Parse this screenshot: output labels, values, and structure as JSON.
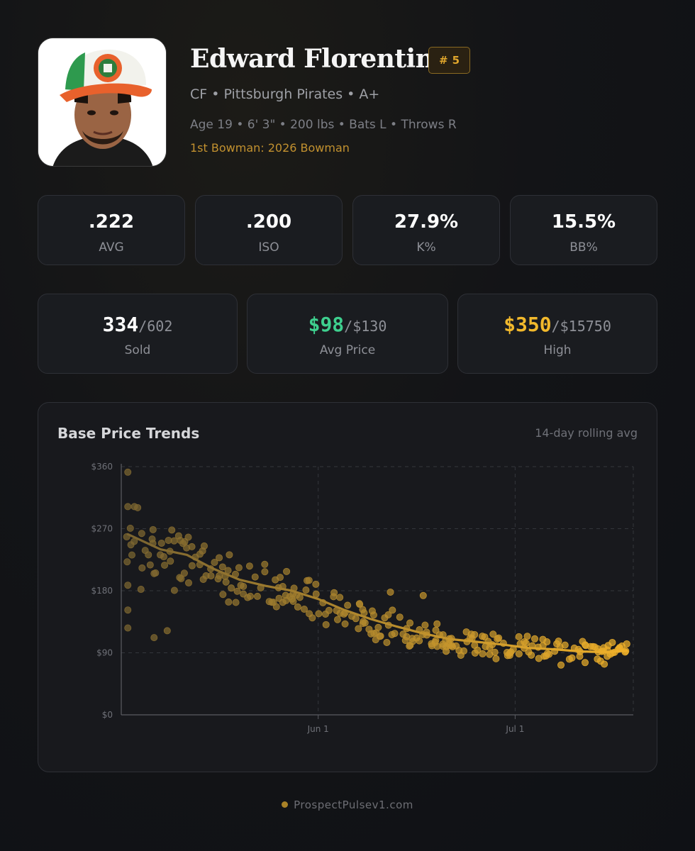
{
  "player": {
    "name": "Edward Florentino",
    "rank_symbol": "#",
    "rank": "5",
    "position_line": "CF • Pittsburgh Pirates • A+",
    "bio_line": "Age 19 • 6' 3\" • 200 lbs • Bats L • Throws R",
    "bowman_line": "1st Bowman: 2026 Bowman"
  },
  "stats": [
    {
      "value": ".222",
      "label": "AVG"
    },
    {
      "value": ".200",
      "label": "ISO"
    },
    {
      "value": "27.9%",
      "label": "K%"
    },
    {
      "value": "15.5%",
      "label": "BB%"
    }
  ],
  "market": [
    {
      "main": "334",
      "sub": "$602",
      "sub_display": "602",
      "label": "Sold",
      "color": "#ffffff"
    },
    {
      "main": "$98",
      "sub_display": "$130",
      "label": "Avg Price",
      "color": "#3ecf8e"
    },
    {
      "main": "$350",
      "sub_display": "$15750",
      "label": "High",
      "color": "#f2b92c"
    }
  ],
  "chart_header": {
    "title": "Base Price Trends",
    "note": "14-day rolling avg"
  },
  "chart_data": {
    "type": "scatter",
    "title": "Base Price Trends",
    "subtitle": "14-day rolling avg",
    "xlabel": "",
    "ylabel": "",
    "x_ticks": [
      "Jun 1",
      "Jul 1"
    ],
    "y_ticks": [
      "$0",
      "$90",
      "$180",
      "$270",
      "$360"
    ],
    "ylim": [
      0,
      360
    ],
    "xlim_days": [
      -30,
      48
    ],
    "grid": true,
    "colors": {
      "early": "#7a6430",
      "late": "#f0b12a",
      "trend": "#b8862a"
    },
    "rolling_avg": [
      [
        -29,
        262
      ],
      [
        -24,
        240
      ],
      [
        -20,
        232
      ],
      [
        -16,
        212
      ],
      [
        -12,
        196
      ],
      [
        -8,
        187
      ],
      [
        -4,
        180
      ],
      [
        0,
        168
      ],
      [
        4,
        152
      ],
      [
        8,
        139
      ],
      [
        12,
        128
      ],
      [
        16,
        118
      ],
      [
        20,
        110
      ],
      [
        24,
        106
      ],
      [
        28,
        102
      ],
      [
        32,
        97
      ],
      [
        36,
        95
      ],
      [
        40,
        92
      ],
      [
        44,
        91
      ],
      [
        47,
        93
      ]
    ],
    "outliers": [
      [
        -29,
        352
      ],
      [
        -29,
        302
      ],
      [
        -28,
        302
      ],
      [
        -29,
        188
      ],
      [
        -29,
        152
      ],
      [
        -29,
        126
      ],
      [
        -27,
        182
      ],
      [
        -25,
        112
      ],
      [
        -25,
        205
      ],
      [
        -23,
        122
      ],
      [
        -21,
        253
      ],
      [
        -4,
        168
      ],
      [
        7,
        148
      ],
      [
        11,
        178
      ],
      [
        16,
        173
      ]
    ]
  },
  "footer": {
    "brand": "ProspectPulsev1.com"
  }
}
